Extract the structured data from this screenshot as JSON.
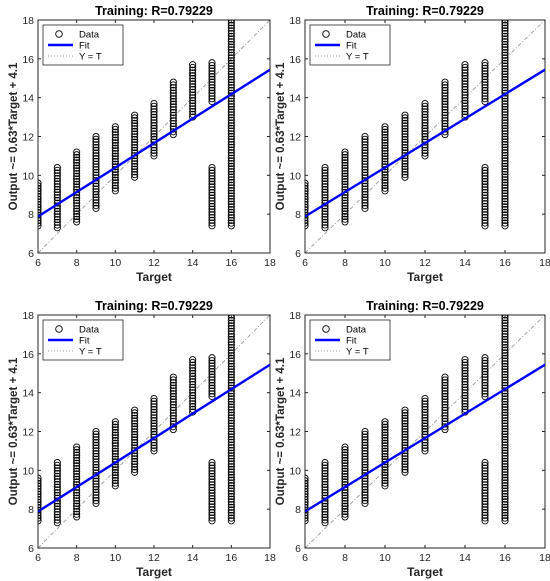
{
  "chart_data": [
    {
      "type": "scatter",
      "title": "Training: R=0.79229",
      "xlabel": "Target",
      "ylabel": "Output ~= 0.63*Target + 4.1",
      "xlim": [
        6,
        18
      ],
      "ylim": [
        6,
        18
      ],
      "xticks": [
        6,
        8,
        10,
        12,
        14,
        16,
        18
      ],
      "yticks": [
        6,
        8,
        10,
        12,
        14,
        16,
        18
      ],
      "grid": false,
      "legend": {
        "placement": "top-left",
        "entries": [
          "Data",
          "Fit",
          "Y = T"
        ]
      },
      "fit": {
        "slope": 0.63,
        "intercept": 4.1,
        "color": "#0000ff"
      },
      "data_columns": [
        {
          "x": 6,
          "min": 7.4,
          "max": 9.6
        },
        {
          "x": 7,
          "min": 7.3,
          "max": 10.4
        },
        {
          "x": 8,
          "min": 7.6,
          "max": 11.2
        },
        {
          "x": 9,
          "min": 8.3,
          "max": 12.0
        },
        {
          "x": 10,
          "min": 9.2,
          "max": 12.5
        },
        {
          "x": 11,
          "min": 9.9,
          "max": 13.1
        },
        {
          "x": 12,
          "min": 11.0,
          "max": 13.7
        },
        {
          "x": 13,
          "min": 12.1,
          "max": 14.8
        },
        {
          "x": 14,
          "min": 13.0,
          "max": 15.7
        },
        {
          "x": 15,
          "min": 7.4,
          "max": 10.4,
          "upper": [
            13.8,
            15.8
          ]
        },
        {
          "x": 16,
          "min": 7.4,
          "max": 18.0
        }
      ]
    },
    {
      "type": "scatter",
      "title": "Training: R=0.79229",
      "xlabel": "Target",
      "ylabel": "Output ~= 0.63*Target + 4.1",
      "xlim": [
        6,
        18
      ],
      "ylim": [
        6,
        18
      ],
      "xticks": [
        6,
        8,
        10,
        12,
        14,
        16,
        18
      ],
      "yticks": [
        6,
        8,
        10,
        12,
        14,
        16,
        18
      ],
      "grid": false,
      "legend": {
        "placement": "top-left",
        "entries": [
          "Data",
          "Fit",
          "Y = T"
        ]
      },
      "fit": {
        "slope": 0.63,
        "intercept": 4.1,
        "color": "#0000ff"
      },
      "data_columns": [
        {
          "x": 6,
          "min": 7.4,
          "max": 9.6
        },
        {
          "x": 7,
          "min": 7.3,
          "max": 10.4
        },
        {
          "x": 8,
          "min": 7.6,
          "max": 11.2
        },
        {
          "x": 9,
          "min": 8.3,
          "max": 12.0
        },
        {
          "x": 10,
          "min": 9.2,
          "max": 12.5
        },
        {
          "x": 11,
          "min": 9.9,
          "max": 13.1
        },
        {
          "x": 12,
          "min": 11.0,
          "max": 13.7
        },
        {
          "x": 13,
          "min": 12.1,
          "max": 14.8
        },
        {
          "x": 14,
          "min": 13.0,
          "max": 15.7
        },
        {
          "x": 15,
          "min": 7.4,
          "max": 10.4,
          "upper": [
            13.8,
            15.8
          ]
        },
        {
          "x": 16,
          "min": 7.4,
          "max": 18.0
        }
      ]
    },
    {
      "type": "scatter",
      "title": "Training: R=0.79229",
      "xlabel": "Target",
      "ylabel": "Output ~= 0.63*Target + 4.1",
      "xlim": [
        6,
        18
      ],
      "ylim": [
        6,
        18
      ],
      "xticks": [
        6,
        8,
        10,
        12,
        14,
        16,
        18
      ],
      "yticks": [
        6,
        8,
        10,
        12,
        14,
        16,
        18
      ],
      "grid": false,
      "legend": {
        "placement": "top-left",
        "entries": [
          "Data",
          "Fit",
          "Y = T"
        ]
      },
      "fit": {
        "slope": 0.63,
        "intercept": 4.1,
        "color": "#0000ff"
      },
      "data_columns": [
        {
          "x": 6,
          "min": 7.4,
          "max": 9.6
        },
        {
          "x": 7,
          "min": 7.3,
          "max": 10.4
        },
        {
          "x": 8,
          "min": 7.6,
          "max": 11.2
        },
        {
          "x": 9,
          "min": 8.3,
          "max": 12.0
        },
        {
          "x": 10,
          "min": 9.2,
          "max": 12.5
        },
        {
          "x": 11,
          "min": 9.9,
          "max": 13.1
        },
        {
          "x": 12,
          "min": 11.0,
          "max": 13.7
        },
        {
          "x": 13,
          "min": 12.1,
          "max": 14.8
        },
        {
          "x": 14,
          "min": 13.0,
          "max": 15.7
        },
        {
          "x": 15,
          "min": 7.4,
          "max": 10.4,
          "upper": [
            13.8,
            15.8
          ]
        },
        {
          "x": 16,
          "min": 7.4,
          "max": 18.0
        }
      ]
    },
    {
      "type": "scatter",
      "title": "Training: R=0.79229",
      "xlabel": "Target",
      "ylabel": "Output ~= 0.63*Target + 4.1",
      "xlim": [
        6,
        18
      ],
      "ylim": [
        6,
        18
      ],
      "xticks": [
        6,
        8,
        10,
        12,
        14,
        16,
        18
      ],
      "yticks": [
        6,
        8,
        10,
        12,
        14,
        16,
        18
      ],
      "grid": false,
      "legend": {
        "placement": "top-left",
        "entries": [
          "Data",
          "Fit",
          "Y = T"
        ]
      },
      "fit": {
        "slope": 0.63,
        "intercept": 4.1,
        "color": "#0000ff"
      },
      "data_columns": [
        {
          "x": 6,
          "min": 7.4,
          "max": 9.6
        },
        {
          "x": 7,
          "min": 7.3,
          "max": 10.4
        },
        {
          "x": 8,
          "min": 7.6,
          "max": 11.2
        },
        {
          "x": 9,
          "min": 8.3,
          "max": 12.0
        },
        {
          "x": 10,
          "min": 9.2,
          "max": 12.5
        },
        {
          "x": 11,
          "min": 9.9,
          "max": 13.1
        },
        {
          "x": 12,
          "min": 11.0,
          "max": 13.7
        },
        {
          "x": 13,
          "min": 12.1,
          "max": 14.8
        },
        {
          "x": 14,
          "min": 13.0,
          "max": 15.7
        },
        {
          "x": 15,
          "min": 7.4,
          "max": 10.4,
          "upper": [
            13.8,
            15.8
          ]
        },
        {
          "x": 16,
          "min": 7.4,
          "max": 18.0
        }
      ]
    }
  ]
}
